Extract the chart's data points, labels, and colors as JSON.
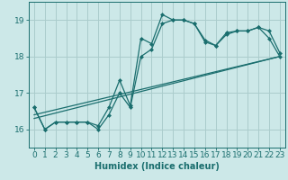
{
  "title": "",
  "xlabel": "Humidex (Indice chaleur)",
  "xlim": [
    -0.5,
    23.5
  ],
  "ylim": [
    15.5,
    19.5
  ],
  "yticks": [
    16,
    17,
    18,
    19
  ],
  "xticks": [
    0,
    1,
    2,
    3,
    4,
    5,
    6,
    7,
    8,
    9,
    10,
    11,
    12,
    13,
    14,
    15,
    16,
    17,
    18,
    19,
    20,
    21,
    22,
    23
  ],
  "bg_color": "#cce8e8",
  "grid_color": "#aacccc",
  "line_color": "#1a6e6e",
  "curve1_x": [
    0,
    1,
    2,
    3,
    4,
    5,
    6,
    7,
    8,
    9,
    10,
    11,
    12,
    13,
    14,
    15,
    16,
    17,
    18,
    19,
    20,
    21,
    22,
    23
  ],
  "curve1_y": [
    16.6,
    16.0,
    16.2,
    16.2,
    16.2,
    16.2,
    16.1,
    16.6,
    17.35,
    16.65,
    18.5,
    18.35,
    19.15,
    19.0,
    19.0,
    18.9,
    18.45,
    18.3,
    18.65,
    18.7,
    18.7,
    18.8,
    18.5,
    18.0
  ],
  "curve2_x": [
    0,
    1,
    2,
    3,
    4,
    5,
    6,
    7,
    8,
    9,
    10,
    11,
    12,
    13,
    14,
    15,
    16,
    17,
    18,
    19,
    20,
    21,
    22,
    23
  ],
  "curve2_y": [
    16.6,
    16.0,
    16.2,
    16.2,
    16.2,
    16.2,
    16.0,
    16.4,
    17.0,
    16.6,
    18.0,
    18.2,
    18.9,
    19.0,
    19.0,
    18.9,
    18.4,
    18.3,
    18.6,
    18.7,
    18.7,
    18.8,
    18.7,
    18.1
  ],
  "line3_x": [
    0,
    23
  ],
  "line3_y": [
    16.4,
    18.0
  ],
  "line4_x": [
    0,
    23
  ],
  "line4_y": [
    16.3,
    18.0
  ],
  "marker_size": 2.5,
  "line_width": 0.9,
  "font_size": 6.5
}
